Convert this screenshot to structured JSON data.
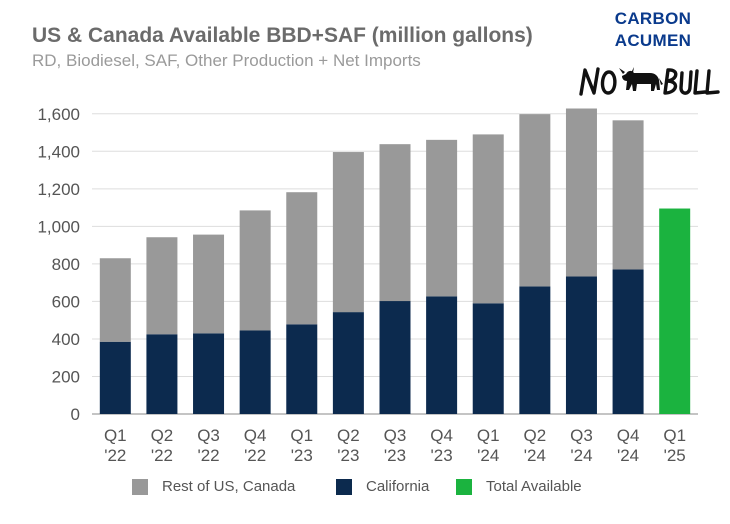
{
  "colors": {
    "rest": "#999999",
    "california": "#0c2a4e",
    "total": "#1bb33f",
    "grid": "#dddddd",
    "axis_text": "#555555",
    "brand_blue": "#0a3a8c"
  },
  "brand": {
    "line1": "CARBON",
    "line2": "ACUMEN",
    "logo_text": "NO BULL"
  },
  "chart_data": {
    "type": "bar",
    "stacked": true,
    "title": "US & Canada Available BBD+SAF (million gallons)",
    "subtitle": "RD, Biodiesel, SAF, Other Production + Net Imports",
    "categories": [
      {
        "line1": "Q1",
        "line2": "'22"
      },
      {
        "line1": "Q2",
        "line2": "'22"
      },
      {
        "line1": "Q3",
        "line2": "'22"
      },
      {
        "line1": "Q4",
        "line2": "'22"
      },
      {
        "line1": "Q1",
        "line2": "'23"
      },
      {
        "line1": "Q2",
        "line2": "'23"
      },
      {
        "line1": "Q3",
        "line2": "'23"
      },
      {
        "line1": "Q4",
        "line2": "'23"
      },
      {
        "line1": "Q1",
        "line2": "'24"
      },
      {
        "line1": "Q2",
        "line2": "'24"
      },
      {
        "line1": "Q3",
        "line2": "'24"
      },
      {
        "line1": "Q4",
        "line2": "'24"
      },
      {
        "line1": "Q1",
        "line2": "'25"
      }
    ],
    "series": [
      {
        "name": "California",
        "color_key": "california",
        "values": [
          385,
          425,
          430,
          445,
          478,
          543,
          602,
          627,
          590,
          680,
          733,
          770,
          null
        ]
      },
      {
        "name": "Rest of US, Canada",
        "color_key": "rest",
        "values": [
          445,
          517,
          526,
          640,
          704,
          853,
          836,
          834,
          900,
          918,
          895,
          795,
          null
        ]
      },
      {
        "name": "Total Available",
        "color_key": "total",
        "values": [
          null,
          null,
          null,
          null,
          null,
          null,
          null,
          null,
          null,
          null,
          null,
          null,
          1095
        ]
      }
    ],
    "legend": [
      {
        "name": "Rest of US, Canada",
        "color_key": "rest"
      },
      {
        "name": "California",
        "color_key": "california"
      },
      {
        "name": "Total Available",
        "color_key": "total"
      }
    ],
    "yticks": [
      0,
      200,
      400,
      600,
      800,
      1000,
      1200,
      1400,
      1600
    ],
    "ytick_labels": [
      "0",
      "200",
      "400",
      "600",
      "800",
      "1,000",
      "1,200",
      "1,400",
      "1,600"
    ],
    "ylim": [
      0,
      1700
    ],
    "xlabel": "",
    "ylabel": "",
    "grid": true,
    "legend_position": "bottom"
  }
}
